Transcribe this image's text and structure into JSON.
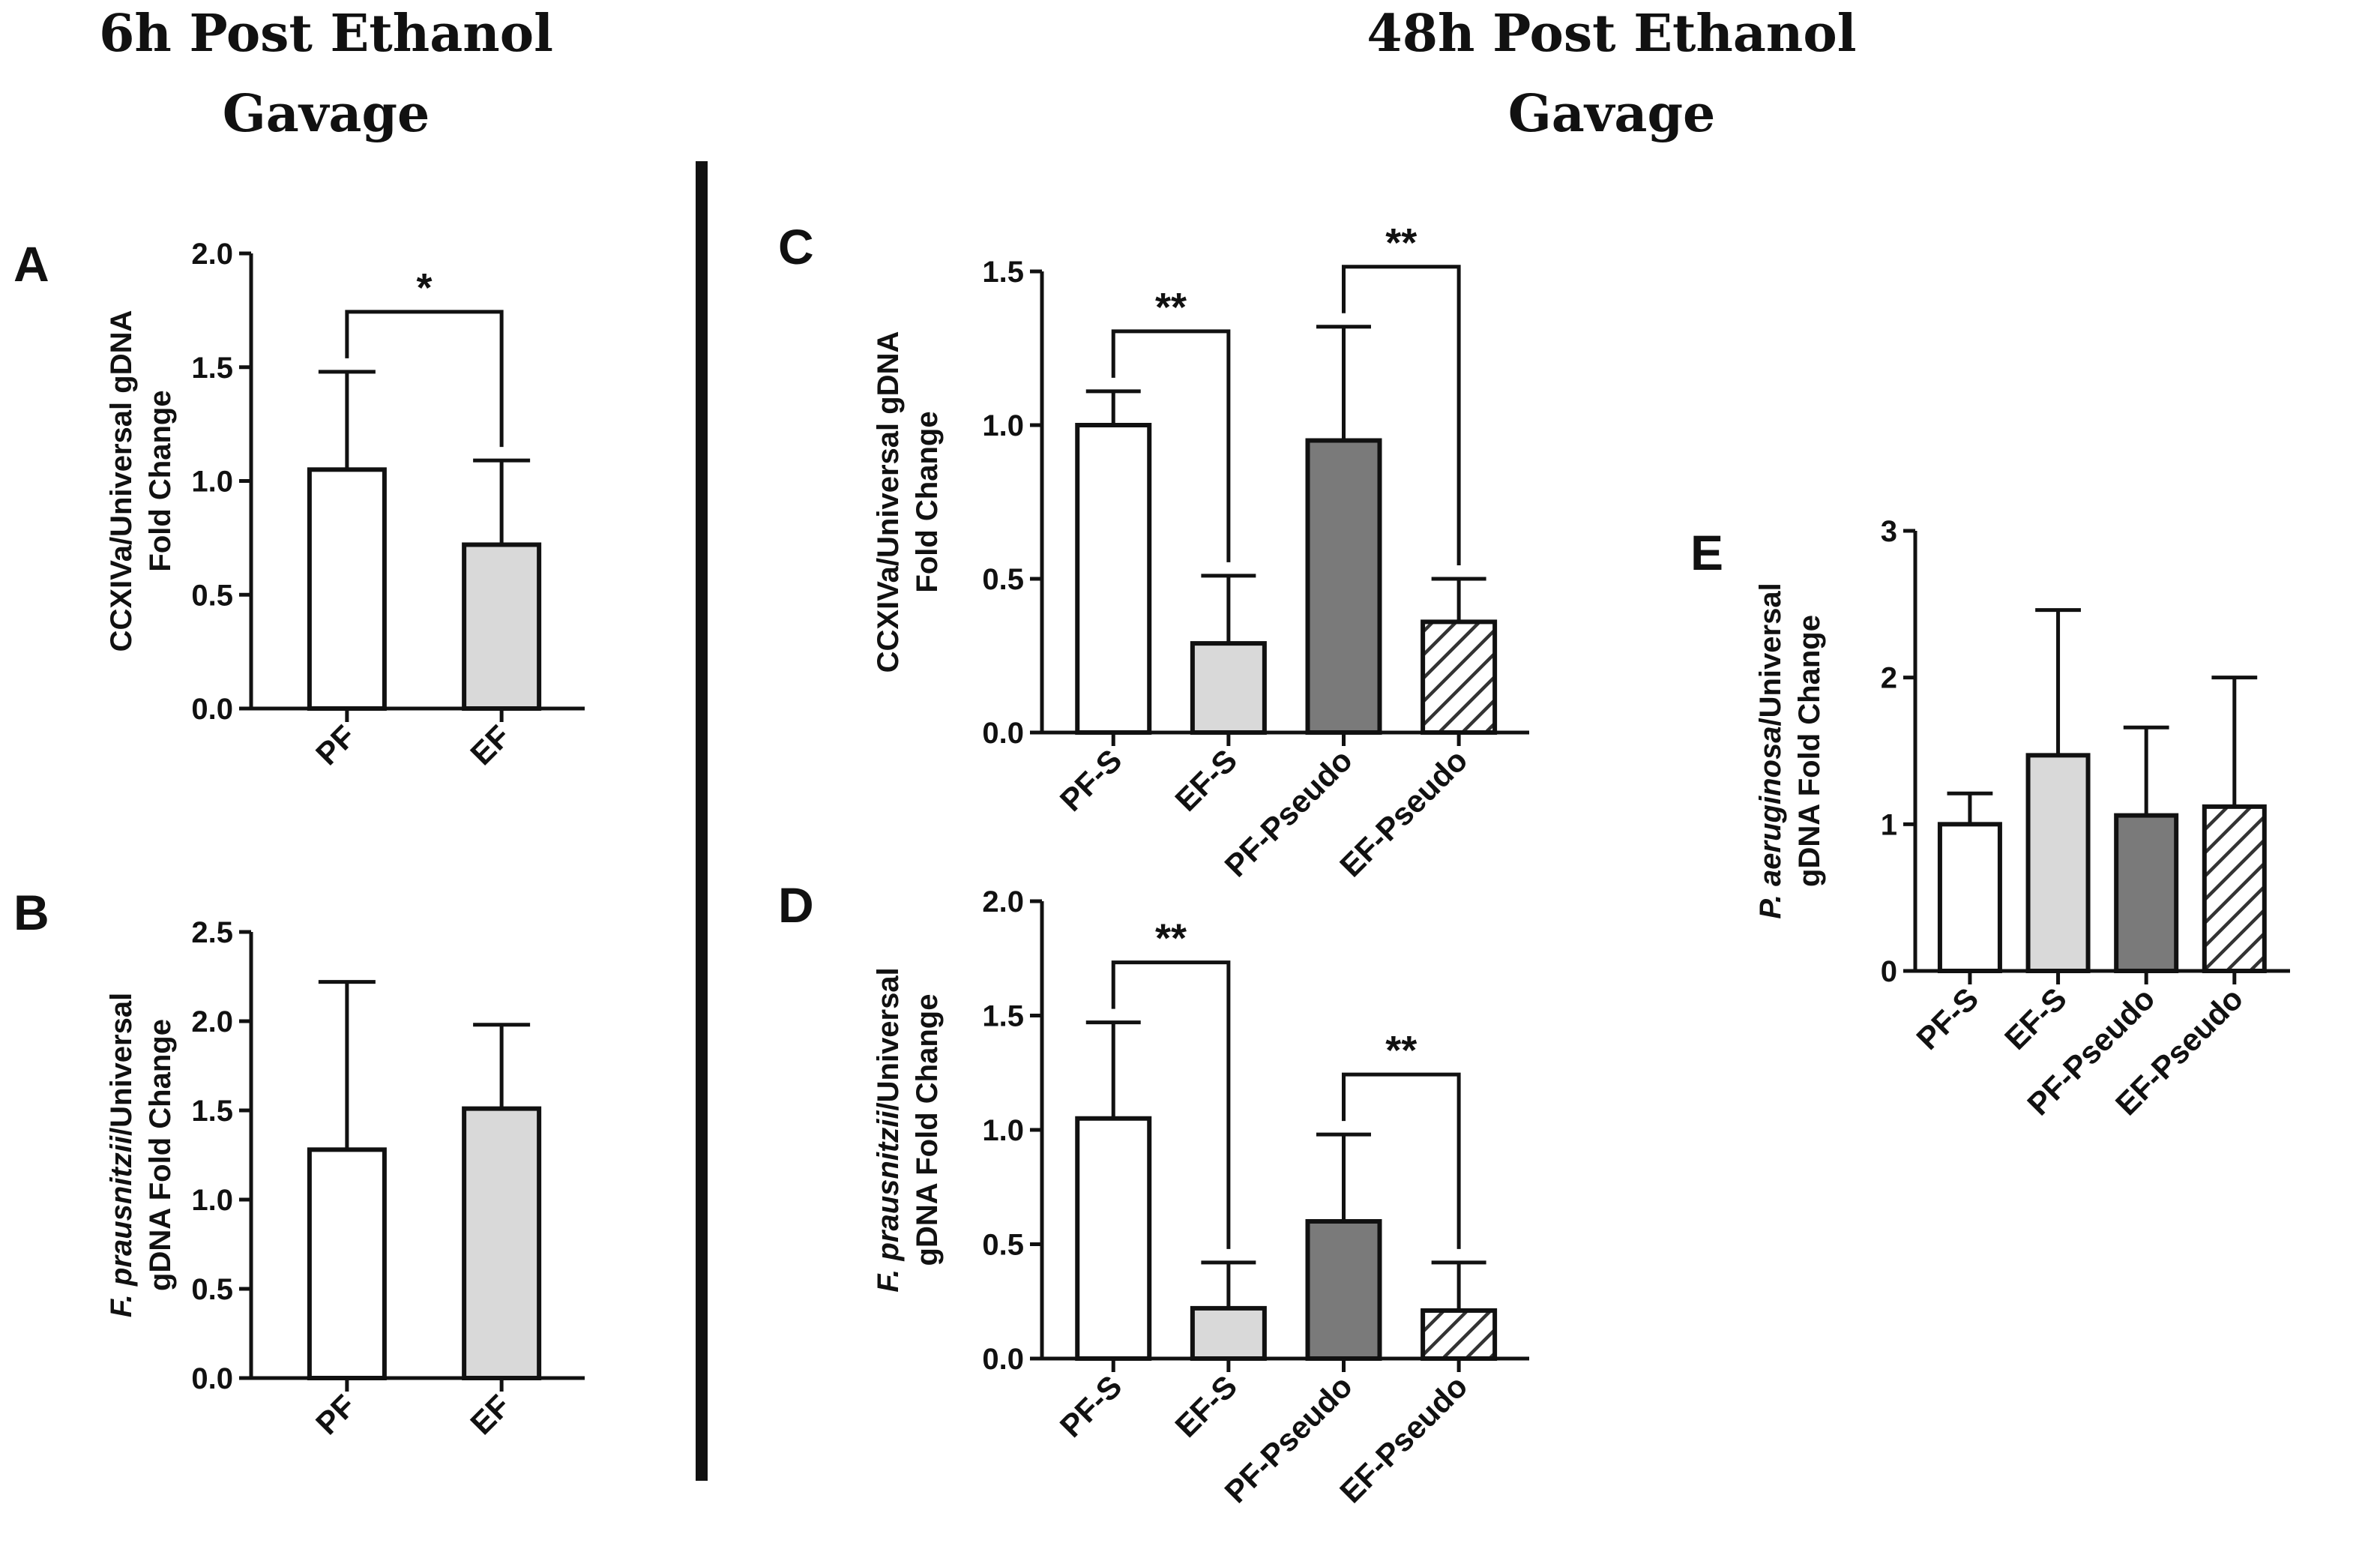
{
  "figure": {
    "section_titles": [
      {
        "lines": [
          "6h Post Ethanol",
          "Gavage"
        ]
      },
      {
        "lines": [
          "48h Post Ethanol",
          "Gavage"
        ]
      }
    ],
    "colors": {
      "white_fill": "#ffffff",
      "light_gray_fill": "#d9d9d9",
      "dark_gray_fill": "#7a7a7a",
      "hatch_background": "#ffffff",
      "hatch_line": "#333333",
      "ink": "#111111"
    }
  },
  "chart_data": [
    {
      "panel": "A",
      "type": "bar",
      "ylabel_lines": [
        [
          {
            "text": "CCXIVa/Universal gDNA",
            "italic": false
          }
        ],
        [
          {
            "text": "Fold Change",
            "italic": false
          }
        ]
      ],
      "ylim": [
        0,
        2.0
      ],
      "yticks": [
        "0.0",
        "0.5",
        "1.0",
        "1.5",
        "2.0"
      ],
      "ytick_values": [
        0,
        0.5,
        1.0,
        1.5,
        2.0
      ],
      "categories": [
        "PF",
        "EF"
      ],
      "values": [
        1.05,
        0.72
      ],
      "errors": [
        0.43,
        0.37
      ],
      "fills": [
        "white",
        "lightgray"
      ],
      "significance": [
        {
          "from": 0,
          "to": 1,
          "label": "*"
        }
      ]
    },
    {
      "panel": "B",
      "type": "bar",
      "ylabel_lines": [
        [
          {
            "text": "F. prausnitzii",
            "italic": true
          },
          {
            "text": "/Universal",
            "italic": false
          }
        ],
        [
          {
            "text": "gDNA Fold Change",
            "italic": false
          }
        ]
      ],
      "ylim": [
        0,
        2.5
      ],
      "yticks": [
        "0.0",
        "0.5",
        "1.0",
        "1.5",
        "2.0",
        "2.5"
      ],
      "ytick_values": [
        0,
        0.5,
        1.0,
        1.5,
        2.0,
        2.5
      ],
      "categories": [
        "PF",
        "EF"
      ],
      "values": [
        1.28,
        1.51
      ],
      "errors": [
        0.94,
        0.47
      ],
      "fills": [
        "white",
        "lightgray"
      ],
      "significance": []
    },
    {
      "panel": "C",
      "type": "bar",
      "ylabel_lines": [
        [
          {
            "text": "CCXIVa/Universal gDNA",
            "italic": false
          }
        ],
        [
          {
            "text": "Fold Change",
            "italic": false
          }
        ]
      ],
      "ylim": [
        0,
        1.5
      ],
      "yticks": [
        "0.0",
        "0.5",
        "1.0",
        "1.5"
      ],
      "ytick_values": [
        0,
        0.5,
        1.0,
        1.5
      ],
      "categories": [
        "PF-S",
        "EF-S",
        "PF-Pseudo",
        "EF-Pseudo"
      ],
      "values": [
        1.0,
        0.29,
        0.95,
        0.36
      ],
      "errors": [
        0.11,
        0.22,
        0.37,
        0.14
      ],
      "fills": [
        "white",
        "lightgray",
        "darkgray",
        "hatch"
      ],
      "significance": [
        {
          "from": 0,
          "to": 1,
          "label": "**"
        },
        {
          "from": 2,
          "to": 3,
          "label": "**"
        }
      ]
    },
    {
      "panel": "D",
      "type": "bar",
      "ylabel_lines": [
        [
          {
            "text": "F. prausnitzii",
            "italic": true
          },
          {
            "text": "/Universal",
            "italic": false
          }
        ],
        [
          {
            "text": "gDNA Fold Change",
            "italic": false
          }
        ]
      ],
      "ylim": [
        0,
        2.0
      ],
      "yticks": [
        "0.0",
        "0.5",
        "1.0",
        "1.5",
        "2.0"
      ],
      "ytick_values": [
        0,
        0.5,
        1.0,
        1.5,
        2.0
      ],
      "categories": [
        "PF-S",
        "EF-S",
        "PF-Pseudo",
        "EF-Pseudo"
      ],
      "values": [
        1.05,
        0.22,
        0.6,
        0.21
      ],
      "errors": [
        0.42,
        0.2,
        0.38,
        0.21
      ],
      "fills": [
        "white",
        "lightgray",
        "darkgray",
        "hatch"
      ],
      "significance": [
        {
          "from": 0,
          "to": 1,
          "label": "**"
        },
        {
          "from": 2,
          "to": 3,
          "label": "**"
        }
      ]
    },
    {
      "panel": "E",
      "type": "bar",
      "ylabel_lines": [
        [
          {
            "text": "P. aeruginosa",
            "italic": true
          },
          {
            "text": "/Universal",
            "italic": false
          }
        ],
        [
          {
            "text": "gDNA Fold Change",
            "italic": false
          }
        ]
      ],
      "ylim": [
        0,
        3
      ],
      "yticks": [
        "0",
        "1",
        "2",
        "3"
      ],
      "ytick_values": [
        0,
        1,
        2,
        3
      ],
      "categories": [
        "PF-S",
        "EF-S",
        "PF-Pseudo",
        "EF-Pseudo"
      ],
      "values": [
        1.0,
        1.47,
        1.06,
        1.12
      ],
      "errors": [
        0.21,
        0.99,
        0.6,
        0.88
      ],
      "fills": [
        "white",
        "lightgray",
        "darkgray",
        "hatch"
      ],
      "significance": []
    }
  ]
}
